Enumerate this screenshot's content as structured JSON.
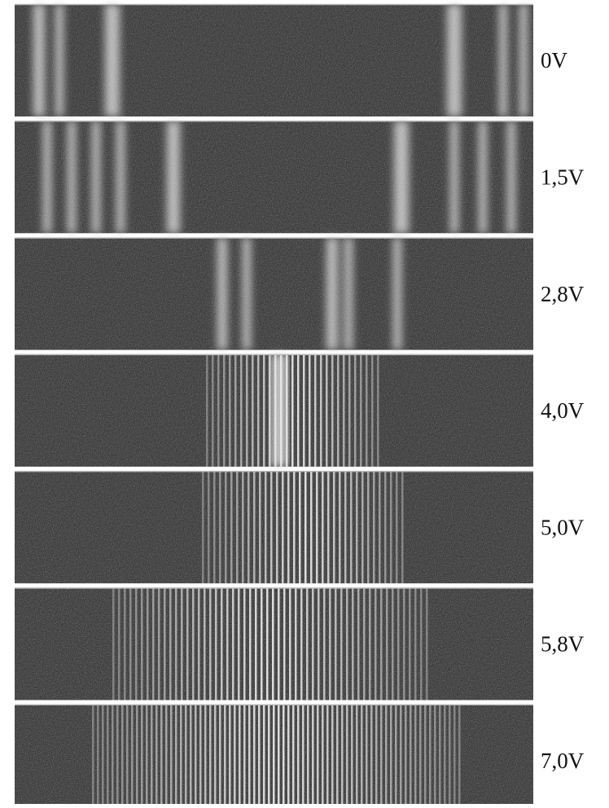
{
  "panels": [
    {
      "label": "0V"
    },
    {
      "label": "1,5V"
    },
    {
      "label": "2,8V"
    },
    {
      "label": "4,0V"
    },
    {
      "label": "5,0V"
    },
    {
      "label": "5,8V"
    },
    {
      "label": "7,0V"
    }
  ]
}
